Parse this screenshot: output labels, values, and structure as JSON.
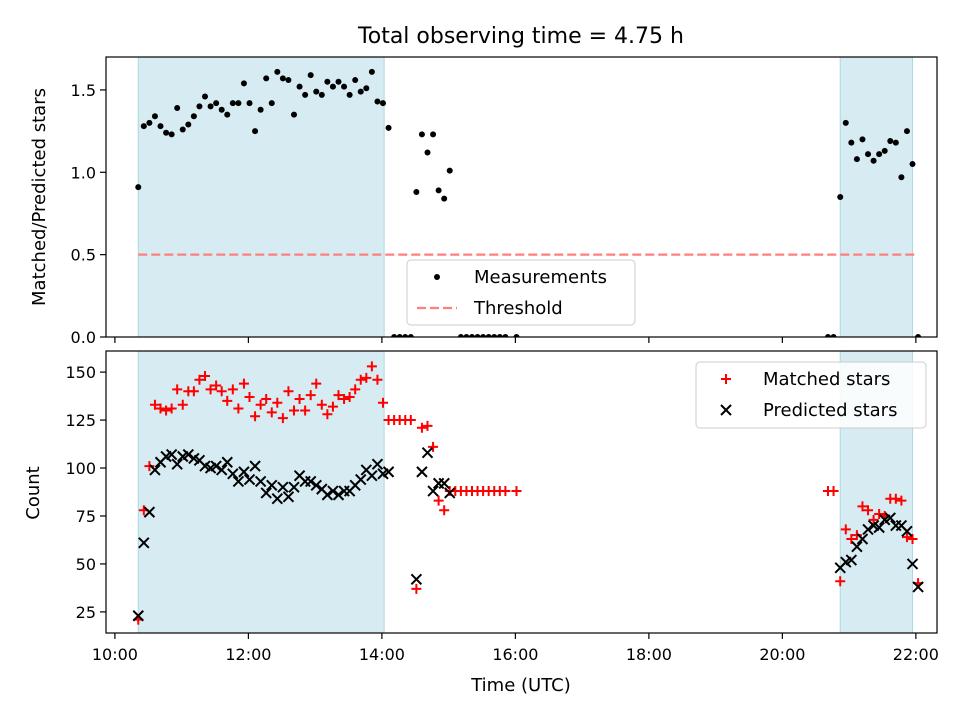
{
  "title": "Total observing time = 4.75 h",
  "colors": {
    "shade": "#add8e6",
    "measurement": "#000000",
    "threshold": "#ff7f7f",
    "matched": "#ff0000",
    "predicted": "#000000"
  },
  "chart_data": [
    {
      "type": "scatter",
      "name": "ratio-panel",
      "ylabel": "Matched/Predicted stars",
      "ylim": [
        0,
        1.7
      ],
      "xlim": [
        "09:52",
        "22:19"
      ],
      "yticks": [
        0,
        0.5,
        1.0,
        1.5
      ],
      "ytick_labels": [
        "0.0",
        "0.5",
        "1.0",
        "1.5"
      ],
      "shaded_intervals": [
        [
          "10:21",
          "14:02"
        ],
        [
          "20:52",
          "21:57"
        ]
      ],
      "threshold": 0.5,
      "legend_position": "lower center",
      "legend": [
        "Measurements",
        "Threshold"
      ],
      "series": [
        {
          "name": "Measurements",
          "marker": "dot",
          "points": [
            [
              "10:21",
              0.91
            ],
            [
              "10:26",
              1.28
            ],
            [
              "10:31",
              1.3
            ],
            [
              "10:36",
              1.34
            ],
            [
              "10:41",
              1.28
            ],
            [
              "10:46",
              1.24
            ],
            [
              "10:51",
              1.23
            ],
            [
              "10:56",
              1.39
            ],
            [
              "11:01",
              1.26
            ],
            [
              "11:06",
              1.29
            ],
            [
              "11:11",
              1.34
            ],
            [
              "11:16",
              1.4
            ],
            [
              "11:21",
              1.46
            ],
            [
              "11:26",
              1.4
            ],
            [
              "11:31",
              1.42
            ],
            [
              "11:36",
              1.38
            ],
            [
              "11:41",
              1.35
            ],
            [
              "11:46",
              1.42
            ],
            [
              "11:51",
              1.42
            ],
            [
              "11:56",
              1.54
            ],
            [
              "12:01",
              1.42
            ],
            [
              "12:06",
              1.25
            ],
            [
              "12:11",
              1.38
            ],
            [
              "12:16",
              1.57
            ],
            [
              "12:21",
              1.42
            ],
            [
              "12:26",
              1.61
            ],
            [
              "12:31",
              1.57
            ],
            [
              "12:36",
              1.56
            ],
            [
              "12:41",
              1.35
            ],
            [
              "12:46",
              1.52
            ],
            [
              "12:51",
              1.47
            ],
            [
              "12:56",
              1.59
            ],
            [
              "13:01",
              1.49
            ],
            [
              "13:06",
              1.47
            ],
            [
              "13:11",
              1.55
            ],
            [
              "13:16",
              1.52
            ],
            [
              "13:21",
              1.55
            ],
            [
              "13:26",
              1.52
            ],
            [
              "13:31",
              1.47
            ],
            [
              "13:36",
              1.56
            ],
            [
              "13:41",
              1.49
            ],
            [
              "13:46",
              1.51
            ],
            [
              "13:51",
              1.61
            ],
            [
              "13:56",
              1.43
            ],
            [
              "14:01",
              1.42
            ],
            [
              "14:06",
              1.27
            ],
            [
              "14:11",
              0.0
            ],
            [
              "14:16",
              0.0
            ],
            [
              "14:21",
              0.0
            ],
            [
              "14:26",
              0.0
            ],
            [
              "14:31",
              0.88
            ],
            [
              "14:36",
              1.23
            ],
            [
              "14:41",
              1.12
            ],
            [
              "14:46",
              1.23
            ],
            [
              "14:51",
              0.89
            ],
            [
              "14:56",
              0.84
            ],
            [
              "15:01",
              1.01
            ],
            [
              "15:11",
              0.0
            ],
            [
              "15:16",
              0.0
            ],
            [
              "15:21",
              0.0
            ],
            [
              "15:26",
              0.0
            ],
            [
              "15:31",
              0.0
            ],
            [
              "15:36",
              0.0
            ],
            [
              "15:41",
              0.0
            ],
            [
              "15:46",
              0.0
            ],
            [
              "15:51",
              0.0
            ],
            [
              "16:01",
              0.0
            ],
            [
              "20:41",
              0.0
            ],
            [
              "20:46",
              0.0
            ],
            [
              "20:52",
              0.85
            ],
            [
              "20:57",
              1.3
            ],
            [
              "21:02",
              1.18
            ],
            [
              "21:07",
              1.08
            ],
            [
              "21:12",
              1.2
            ],
            [
              "21:17",
              1.11
            ],
            [
              "21:22",
              1.07
            ],
            [
              "21:27",
              1.11
            ],
            [
              "21:32",
              1.13
            ],
            [
              "21:37",
              1.19
            ],
            [
              "21:42",
              1.18
            ],
            [
              "21:47",
              0.97
            ],
            [
              "21:52",
              1.25
            ],
            [
              "21:57",
              1.05
            ],
            [
              "22:02",
              0.0
            ]
          ]
        },
        {
          "name": "Threshold",
          "marker": "dashed-line",
          "points": [
            [
              "10:21",
              0.5
            ],
            [
              "22:02",
              0.5
            ]
          ]
        }
      ]
    },
    {
      "type": "scatter",
      "name": "count-panel",
      "xlabel": "Time (UTC)",
      "ylabel": "Count",
      "ylim": [
        14,
        161
      ],
      "xlim": [
        "09:52",
        "22:19"
      ],
      "yticks": [
        25,
        50,
        75,
        100,
        125,
        150
      ],
      "ytick_labels": [
        "25",
        "50",
        "75",
        "100",
        "125",
        "150"
      ],
      "xticks": [
        "10:00",
        "12:00",
        "14:00",
        "16:00",
        "18:00",
        "20:00",
        "22:00"
      ],
      "xtick_labels": [
        "10:00",
        "12:00",
        "14:00",
        "16:00",
        "18:00",
        "20:00",
        "22:00"
      ],
      "shaded_intervals": [
        [
          "10:21",
          "14:02"
        ],
        [
          "20:52",
          "21:57"
        ]
      ],
      "legend_position": "upper right",
      "legend": [
        "Matched stars",
        "Predicted stars"
      ],
      "series": [
        {
          "name": "Matched stars",
          "marker": "plus",
          "points": [
            [
              "10:21",
              21
            ],
            [
              "10:26",
              78
            ],
            [
              "10:31",
              101
            ],
            [
              "10:36",
              133
            ],
            [
              "10:41",
              131
            ],
            [
              "10:46",
              130
            ],
            [
              "10:51",
              131
            ],
            [
              "10:56",
              141
            ],
            [
              "11:01",
              133
            ],
            [
              "11:06",
              140
            ],
            [
              "11:11",
              140
            ],
            [
              "11:16",
              146
            ],
            [
              "11:21",
              148
            ],
            [
              "11:26",
              141
            ],
            [
              "11:31",
              143
            ],
            [
              "11:36",
              140
            ],
            [
              "11:41",
              135
            ],
            [
              "11:46",
              141
            ],
            [
              "11:51",
              131
            ],
            [
              "11:56",
              144
            ],
            [
              "12:01",
              137
            ],
            [
              "12:06",
              127
            ],
            [
              "12:11",
              133
            ],
            [
              "12:16",
              136
            ],
            [
              "12:21",
              129
            ],
            [
              "12:26",
              134
            ],
            [
              "12:31",
              126
            ],
            [
              "12:36",
              140
            ],
            [
              "12:41",
              130
            ],
            [
              "12:46",
              136
            ],
            [
              "12:51",
              130
            ],
            [
              "12:56",
              138
            ],
            [
              "13:01",
              144
            ],
            [
              "13:06",
              133
            ],
            [
              "13:11",
              128
            ],
            [
              "13:16",
              132
            ],
            [
              "13:21",
              138
            ],
            [
              "13:26",
              136
            ],
            [
              "13:31",
              137
            ],
            [
              "13:36",
              141
            ],
            [
              "13:41",
              146
            ],
            [
              "13:46",
              147
            ],
            [
              "13:51",
              153
            ],
            [
              "13:56",
              146
            ],
            [
              "14:01",
              134
            ],
            [
              "14:06",
              125
            ],
            [
              "14:11",
              125
            ],
            [
              "14:16",
              125
            ],
            [
              "14:21",
              125
            ],
            [
              "14:26",
              125
            ],
            [
              "14:31",
              37
            ],
            [
              "14:36",
              121
            ],
            [
              "14:41",
              122
            ],
            [
              "14:46",
              111
            ],
            [
              "14:51",
              83
            ],
            [
              "14:56",
              78
            ],
            [
              "15:01",
              88
            ],
            [
              "15:06",
              88
            ],
            [
              "15:11",
              88
            ],
            [
              "15:16",
              88
            ],
            [
              "15:21",
              88
            ],
            [
              "15:26",
              88
            ],
            [
              "15:31",
              88
            ],
            [
              "15:36",
              88
            ],
            [
              "15:41",
              88
            ],
            [
              "15:46",
              88
            ],
            [
              "15:51",
              88
            ],
            [
              "16:01",
              88
            ],
            [
              "20:41",
              88
            ],
            [
              "20:46",
              88
            ],
            [
              "20:52",
              41
            ],
            [
              "20:57",
              68
            ],
            [
              "21:02",
              63
            ],
            [
              "21:07",
              65
            ],
            [
              "21:12",
              80
            ],
            [
              "21:17",
              78
            ],
            [
              "21:22",
              73
            ],
            [
              "21:27",
              76
            ],
            [
              "21:32",
              75
            ],
            [
              "21:37",
              84
            ],
            [
              "21:42",
              84
            ],
            [
              "21:47",
              83
            ],
            [
              "21:52",
              64
            ],
            [
              "21:57",
              63
            ],
            [
              "22:02",
              40
            ]
          ]
        },
        {
          "name": "Predicted stars",
          "marker": "x",
          "points": [
            [
              "10:21",
              23
            ],
            [
              "10:26",
              61
            ],
            [
              "10:31",
              77
            ],
            [
              "10:36",
              99
            ],
            [
              "10:41",
              103
            ],
            [
              "10:46",
              106
            ],
            [
              "10:51",
              107
            ],
            [
              "10:56",
              102
            ],
            [
              "11:01",
              106
            ],
            [
              "11:06",
              107
            ],
            [
              "11:11",
              105
            ],
            [
              "11:16",
              104
            ],
            [
              "11:21",
              101
            ],
            [
              "11:26",
              100
            ],
            [
              "11:31",
              101
            ],
            [
              "11:36",
              99
            ],
            [
              "11:41",
              103
            ],
            [
              "11:46",
              97
            ],
            [
              "11:51",
              93
            ],
            [
              "11:56",
              98
            ],
            [
              "12:01",
              94
            ],
            [
              "12:06",
              101
            ],
            [
              "12:11",
              93
            ],
            [
              "12:16",
              87
            ],
            [
              "12:21",
              91
            ],
            [
              "12:26",
              84
            ],
            [
              "12:31",
              90
            ],
            [
              "12:36",
              85
            ],
            [
              "12:41",
              90
            ],
            [
              "12:46",
              96
            ],
            [
              "12:51",
              93
            ],
            [
              "12:56",
              93
            ],
            [
              "13:01",
              91
            ],
            [
              "13:06",
              89
            ],
            [
              "13:11",
              86
            ],
            [
              "13:16",
              88
            ],
            [
              "13:21",
              86
            ],
            [
              "13:26",
              88
            ],
            [
              "13:31",
              88
            ],
            [
              "13:36",
              91
            ],
            [
              "13:41",
              94
            ],
            [
              "13:46",
              99
            ],
            [
              "13:51",
              96
            ],
            [
              "13:56",
              102
            ],
            [
              "14:01",
              97
            ],
            [
              "14:06",
              98
            ],
            [
              "14:31",
              42
            ],
            [
              "14:36",
              98
            ],
            [
              "14:41",
              108
            ],
            [
              "14:46",
              88
            ],
            [
              "14:51",
              92
            ],
            [
              "14:56",
              92
            ],
            [
              "15:01",
              87
            ],
            [
              "20:52",
              48
            ],
            [
              "20:57",
              51
            ],
            [
              "21:02",
              52
            ],
            [
              "21:07",
              59
            ],
            [
              "21:12",
              63
            ],
            [
              "21:17",
              68
            ],
            [
              "21:22",
              70
            ],
            [
              "21:27",
              69
            ],
            [
              "21:32",
              73
            ],
            [
              "21:37",
              74
            ],
            [
              "21:42",
              70
            ],
            [
              "21:47",
              70
            ],
            [
              "21:52",
              67
            ],
            [
              "21:57",
              50
            ],
            [
              "22:02",
              38
            ]
          ]
        }
      ]
    }
  ]
}
